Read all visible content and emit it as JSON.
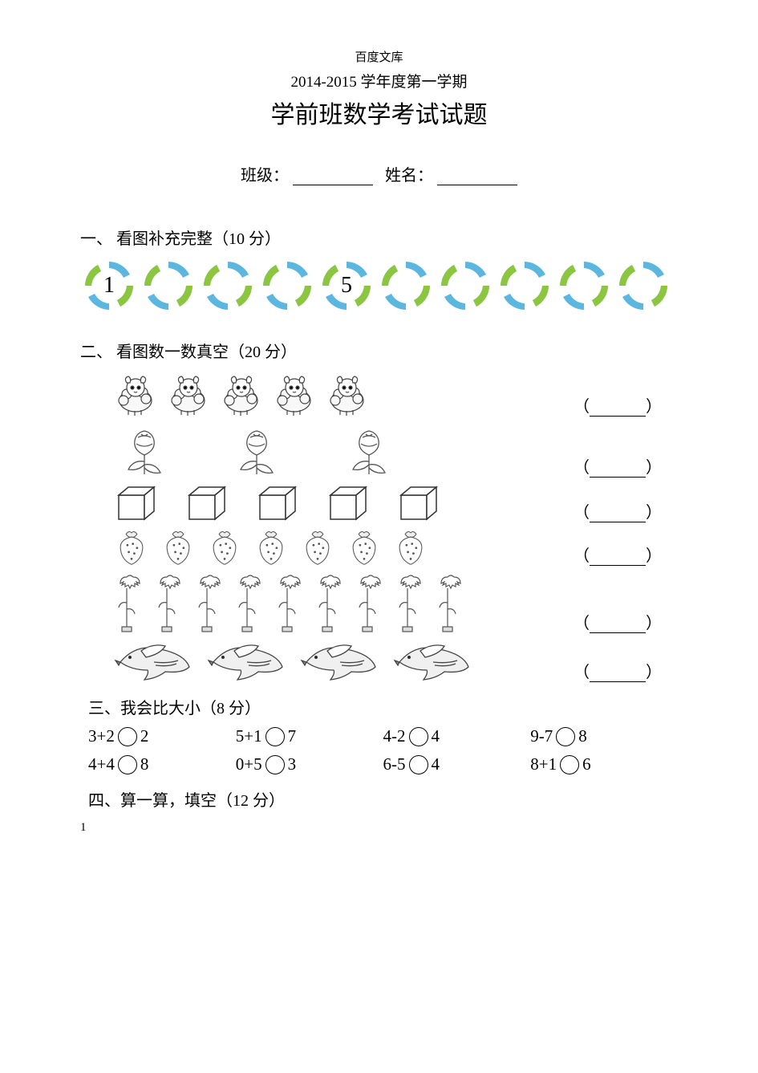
{
  "header": "百度文库",
  "subtitle": "2014-2015 学年度第一学期",
  "title": "学前班数学考试试题",
  "fields": {
    "class_label": "班级：",
    "name_label": "姓名："
  },
  "section1": {
    "heading": "一、  看图补充完整（10 分）",
    "ring_count": 10,
    "colors": {
      "blue": "#5bb6e0",
      "green": "#8cc63f"
    },
    "numbers": {
      "0": "1",
      "4": "5"
    }
  },
  "section2": {
    "heading": "二、  看图数一数真空（20 分）",
    "rows": [
      {
        "icon": "sheep",
        "count": 5
      },
      {
        "icon": "rose",
        "count": 3
      },
      {
        "icon": "cube",
        "count": 5
      },
      {
        "icon": "strawberry",
        "count": 7
      },
      {
        "icon": "carnation",
        "count": 9
      },
      {
        "icon": "bird",
        "count": 4
      }
    ],
    "blank": {
      "open": "（",
      "close": "）"
    }
  },
  "section3": {
    "heading": "三、我会比大小（8 分）",
    "items": [
      {
        "l": "3+2",
        "r": "2"
      },
      {
        "l": "5+1",
        "r": "7"
      },
      {
        "l": "4-2",
        "r": "4"
      },
      {
        "l": "9-7",
        "r": "8"
      },
      {
        "l": "4+4",
        "r": "8"
      },
      {
        "l": "0+5",
        "r": "3"
      },
      {
        "l": "6-5",
        "r": "4"
      },
      {
        "l": "8+1",
        "r": "6"
      }
    ]
  },
  "section4": {
    "heading": "四、算一算，填空（12 分）"
  },
  "page_number": "1"
}
